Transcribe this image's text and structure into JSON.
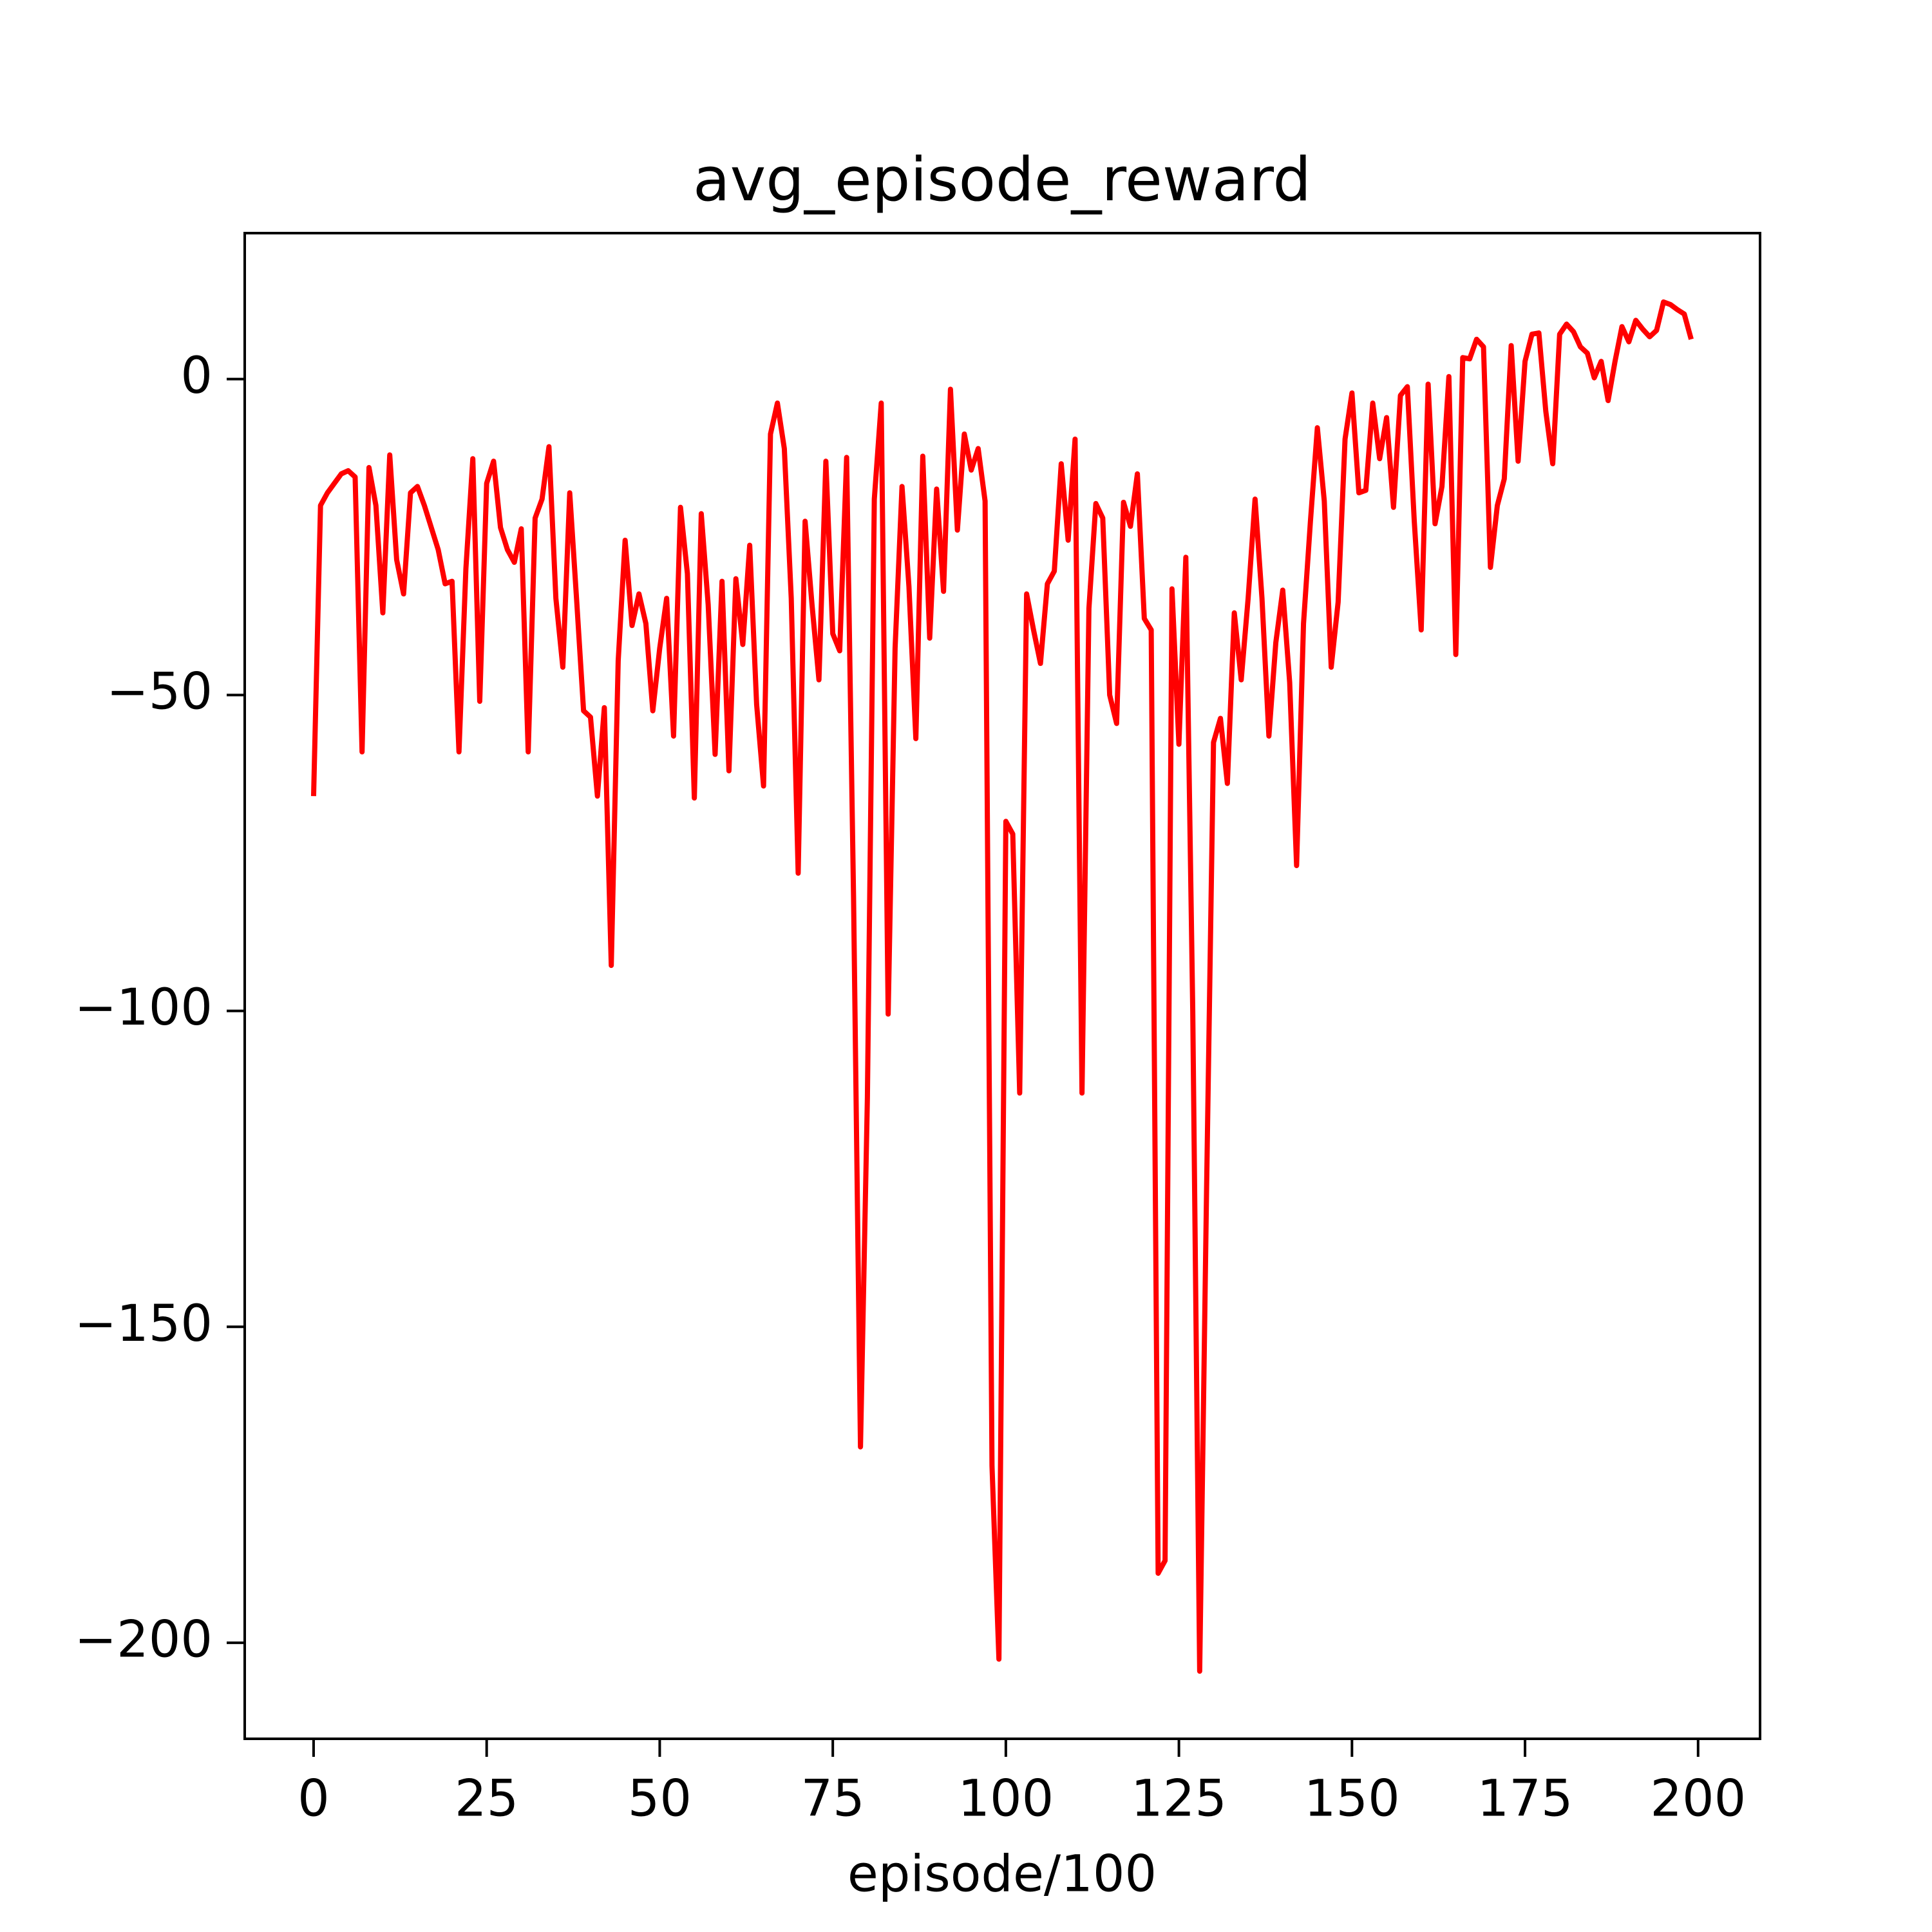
{
  "chart_data": {
    "type": "line",
    "title": "avg_episode_reward",
    "xlabel": "episode/100",
    "x": [
      0,
      1,
      2,
      3,
      4,
      5,
      6,
      7,
      8,
      9,
      10,
      11,
      12,
      13,
      14,
      15,
      16,
      17,
      18,
      19,
      20,
      21,
      22,
      23,
      24,
      25,
      26,
      27,
      28,
      29,
      30,
      31,
      32,
      33,
      34,
      35,
      36,
      37,
      38,
      39,
      40,
      41,
      42,
      43,
      44,
      45,
      46,
      47,
      48,
      49,
      50,
      51,
      52,
      53,
      54,
      55,
      56,
      57,
      58,
      59,
      60,
      61,
      62,
      63,
      64,
      65,
      66,
      67,
      68,
      69,
      70,
      71,
      72,
      73,
      74,
      75,
      76,
      77,
      78,
      79,
      80,
      81,
      82,
      83,
      84,
      85,
      86,
      87,
      88,
      89,
      90,
      91,
      92,
      93,
      94,
      95,
      96,
      97,
      98,
      99,
      100,
      101,
      102,
      103,
      104,
      105,
      106,
      107,
      108,
      109,
      110,
      111,
      112,
      113,
      114,
      115,
      116,
      117,
      118,
      119,
      120,
      121,
      122,
      123,
      124,
      125,
      126,
      127,
      128,
      129,
      130,
      131,
      132,
      133,
      134,
      135,
      136,
      137,
      138,
      139,
      140,
      141,
      142,
      143,
      144,
      145,
      146,
      147,
      148,
      149,
      150,
      151,
      152,
      153,
      154,
      155,
      156,
      157,
      158,
      159,
      160,
      161,
      162,
      163,
      164,
      165,
      166,
      167,
      168,
      169,
      170,
      171,
      172,
      173,
      174,
      175,
      176,
      177,
      178,
      179,
      180,
      181,
      182,
      183,
      184,
      185,
      186,
      187,
      188,
      189,
      190,
      191,
      192,
      193,
      194,
      195,
      196,
      197,
      198,
      199
    ],
    "series": [
      {
        "name": "avg_episode_reward",
        "color": "#ff0000",
        "values": [
          -66,
          -20,
          -18,
          -16.5,
          -15,
          -14.5,
          -15.5,
          -59,
          -14,
          -20,
          -37,
          -12,
          -28.6,
          -34,
          -18,
          -17,
          -20,
          -23.5,
          -27,
          -32.4,
          -32,
          -59,
          -30,
          -12.6,
          -51,
          -16.5,
          -13,
          -23.5,
          -27,
          -29,
          -23.7,
          -59,
          -22,
          -19,
          -10.7,
          -34.7,
          -45.6,
          -18,
          -35,
          -52.5,
          -53.5,
          -66,
          -52,
          -92.8,
          -44.6,
          -25.5,
          -39,
          -34,
          -38.7,
          -52.5,
          -42.6,
          -34.7,
          -56.5,
          -20.3,
          -30.8,
          -66.3,
          -21.3,
          -35.7,
          -59.4,
          -32,
          -62,
          -31.6,
          -42,
          -26.3,
          -51.5,
          -64.4,
          -8.7,
          -3.8,
          -11,
          -34.7,
          -78.2,
          -22.5,
          -35.7,
          -47.6,
          -13,
          -40.3,
          -43,
          -12.4,
          -82,
          -169,
          -113.7,
          -19,
          -3.8,
          -100.5,
          -42.6,
          -17,
          -32.8,
          -56.9,
          -12.2,
          -41,
          -17.4,
          -33.6,
          -1.6,
          -23.9,
          -8.7,
          -14.4,
          -11,
          -19.3,
          -172,
          -202.6,
          -70,
          -72,
          -113,
          -34,
          -39.7,
          -45,
          -32.4,
          -30.4,
          -13.4,
          -25.5,
          -9.5,
          -113,
          -36.3,
          -19.7,
          -22,
          -50,
          -54.5,
          -19.5,
          -23.3,
          -15,
          -37.9,
          -39.7,
          -189,
          -187,
          -33.2,
          -57.8,
          -28.2,
          -100,
          -204.5,
          -128,
          -57.5,
          -53.7,
          -64,
          -37,
          -47.6,
          -34.7,
          -19,
          -34.7,
          -56.5,
          -41.7,
          -33.4,
          -48,
          -77,
          -38.7,
          -22.5,
          -7.7,
          -19.3,
          -45.6,
          -35.3,
          -9.5,
          -2.2,
          -18,
          -17.6,
          -3.8,
          -12.6,
          -6.1,
          -20.3,
          -2.6,
          -1.2,
          -22.5,
          -39.7,
          -0.8,
          -22.9,
          -17,
          0.4,
          -43.6,
          3.4,
          3.2,
          6.3,
          5.1,
          -29.8,
          -20,
          -15.8,
          5.3,
          -13,
          2.8,
          7.1,
          7.3,
          -5.1,
          -13.4,
          7.1,
          8.7,
          7.5,
          5.1,
          4.1,
          0.2,
          2.8,
          -3.4,
          2.8,
          8.3,
          5.9,
          9.3,
          7.9,
          6.7,
          7.7,
          12.2,
          11.8,
          11,
          10.3,
          6.3
        ]
      }
    ],
    "xlim": [
      -9.95,
      208.95
    ],
    "xticks": [
      0,
      25,
      50,
      75,
      100,
      125,
      150,
      175,
      200
    ],
    "ylim": [
      -215.2,
      23.1
    ],
    "yticks": [
      {
        "value": -200,
        "label": "−200"
      },
      {
        "value": -150,
        "label": "−150"
      },
      {
        "value": -100,
        "label": "−100"
      },
      {
        "value": -50,
        "label": "−50"
      },
      0
    ],
    "grid": false
  }
}
